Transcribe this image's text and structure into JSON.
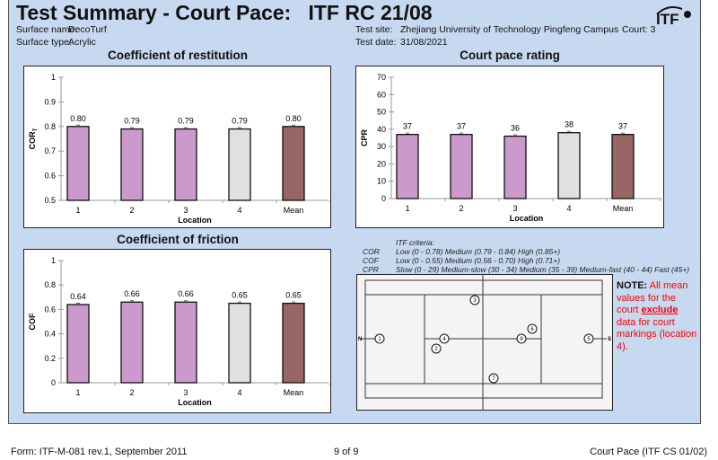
{
  "header": {
    "title": "Test Summary - Court Pace:   ITF RC 21/08",
    "logo_text": "ITF",
    "surface_name_label": "Surface name:",
    "surface_name": "DecoTurf",
    "surface_type_label": "Surface type:",
    "surface_type": "Acrylic",
    "test_site_label": "Test site:",
    "test_site": "Zhejiang University of Technology Pingfeng Campus",
    "court": "Court: 3",
    "test_date_label": "Test date:",
    "test_date": "31/08/2021"
  },
  "colors": {
    "background": "#c6d9f1",
    "location_bar": "#cc99cc",
    "markings_bar": "#e0e0e0",
    "mean_bar": "#996666"
  },
  "chart_data": [
    {
      "type": "bar",
      "title": "Coefficient of restitution",
      "ylabel": "COR",
      "ylabel_sub": "T",
      "xlabel": "Location",
      "categories": [
        "1",
        "2",
        "3",
        "4",
        "Mean"
      ],
      "values": [
        0.8,
        0.79,
        0.79,
        0.79,
        0.8
      ],
      "labels": [
        "0.80",
        "0.79",
        "0.79",
        "0.79",
        "0.80"
      ],
      "ylim": [
        0.5,
        1
      ],
      "yticks": [
        "0.5",
        "0.6",
        "0.7",
        "0.8",
        "0.9",
        "1"
      ],
      "error_bars": true
    },
    {
      "type": "bar",
      "title": "Court pace rating",
      "ylabel": "CPR",
      "xlabel": "Location",
      "categories": [
        "1",
        "2",
        "3",
        "4",
        "Mean"
      ],
      "values": [
        37,
        37,
        36,
        38,
        37
      ],
      "labels": [
        "37",
        "37",
        "36",
        "38",
        "37"
      ],
      "ylim": [
        0,
        70
      ],
      "yticks": [
        "0",
        "10",
        "20",
        "30",
        "40",
        "50",
        "60",
        "70"
      ],
      "error_bars": true
    },
    {
      "type": "bar",
      "title": "Coefficient of friction",
      "ylabel": "COF",
      "xlabel": "Location",
      "categories": [
        "1",
        "2",
        "3",
        "4",
        "Mean"
      ],
      "values": [
        0.64,
        0.66,
        0.66,
        0.65,
        0.65
      ],
      "labels": [
        "0.64",
        "0.66",
        "0.66",
        "0.65",
        "0.65"
      ],
      "ylim": [
        0,
        1
      ],
      "yticks": [
        "0",
        "0.2",
        "0.4",
        "0.6",
        "0.8",
        "1"
      ],
      "error_bars": true
    }
  ],
  "criteria": {
    "heading": "ITF criteria:",
    "rows": [
      {
        "name": "COR",
        "text": "Low (0 - 0.78)   Medium (0.79 - 0.84)   High (0.85+)"
      },
      {
        "name": "COF",
        "text": "Low (0 - 0.55)   Medium (0.56 - 0.70)   High (0.71+)"
      },
      {
        "name": "CPR",
        "text": "Slow (0 - 29)   Medium-slow (30 - 34)   Medium (35 - 39)   Medium-fast (40 - 44)   Fast (45+)"
      }
    ]
  },
  "court": {
    "north": "N",
    "south": "S",
    "locations": [
      "1",
      "2",
      "3",
      "4",
      "5",
      "6",
      "7",
      "8"
    ]
  },
  "note": {
    "label": "NOTE:",
    "text1": " All mean values for the court ",
    "emph": "exclude",
    "text2": " data for court markings (location 4)."
  },
  "footer": {
    "form": "Form: ITF-M-081 rev.1, September 2011",
    "page": "9 of 9",
    "doc": "Court Pace (ITF CS 01/02)"
  }
}
